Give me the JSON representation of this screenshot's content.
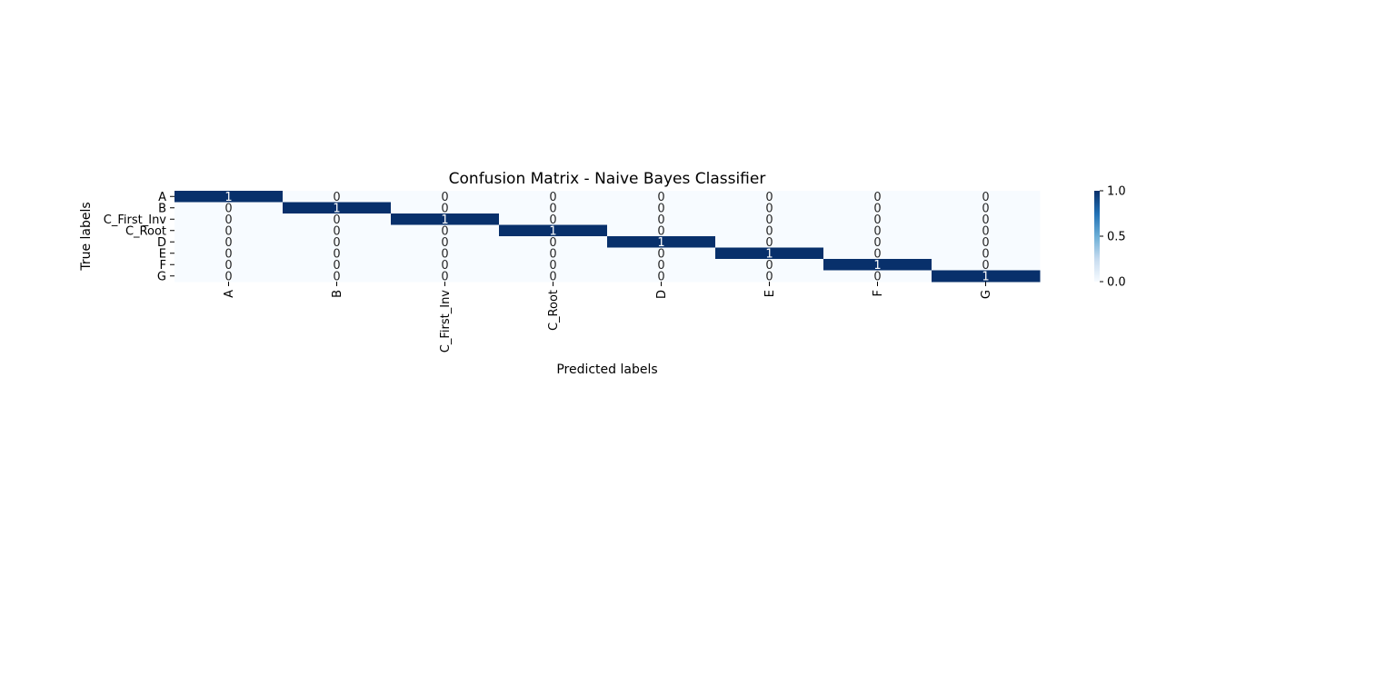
{
  "chart_data": {
    "type": "heatmap",
    "title": "Confusion Matrix - Naive Bayes Classifier",
    "xlabel": "Predicted labels",
    "ylabel": "True labels",
    "row_labels": [
      "A",
      "B",
      "C_First_Inv",
      "C_Root",
      "D",
      "E",
      "F",
      "G"
    ],
    "col_labels": [
      "A",
      "B",
      "C_First_Inv",
      "C_Root",
      "D",
      "E",
      "F",
      "G"
    ],
    "values": [
      [
        1,
        0,
        0,
        0,
        0,
        0,
        0,
        0
      ],
      [
        0,
        1,
        0,
        0,
        0,
        0,
        0,
        0
      ],
      [
        0,
        0,
        1,
        0,
        0,
        0,
        0,
        0
      ],
      [
        0,
        0,
        0,
        1,
        0,
        0,
        0,
        0
      ],
      [
        0,
        0,
        0,
        0,
        1,
        0,
        0,
        0
      ],
      [
        0,
        0,
        0,
        0,
        0,
        1,
        0,
        0
      ],
      [
        0,
        0,
        0,
        0,
        0,
        0,
        1,
        0
      ],
      [
        0,
        0,
        0,
        0,
        0,
        0,
        0,
        1
      ]
    ],
    "colormap": "Blues",
    "vmin": 0.0,
    "vmax": 1.0,
    "colorbar_ticks": [
      "0.0",
      "0.5",
      "1.0"
    ],
    "colors": {
      "low": "#f7fbff",
      "mid": "#6baed6",
      "high": "#08306b"
    }
  }
}
